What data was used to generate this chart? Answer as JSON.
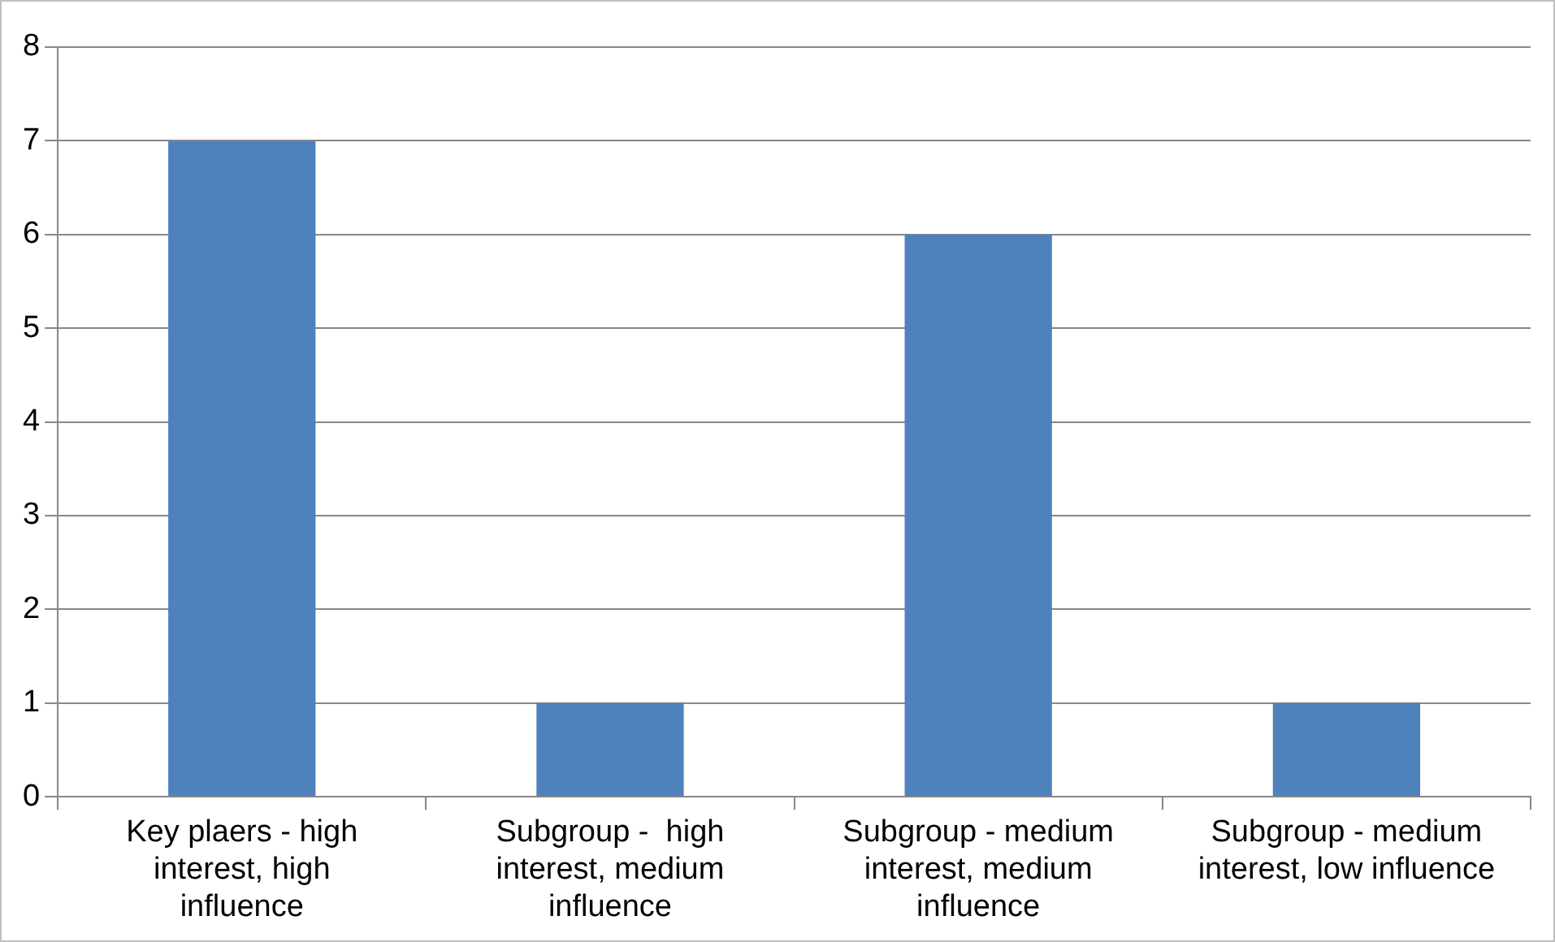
{
  "chart_data": {
    "type": "bar",
    "categories": [
      "Key plaers - high interest, high influence",
      "Subgroup -  high interest, medium influence",
      "Subgroup - medium interest, medium influence",
      "Subgroup - medium interest, low influence"
    ],
    "values": [
      7,
      1,
      6,
      1
    ],
    "color": "#4f81bd",
    "ylim": [
      0,
      8
    ],
    "yticks": [
      0,
      1,
      2,
      3,
      4,
      5,
      6,
      7,
      8
    ],
    "grid": "y"
  }
}
